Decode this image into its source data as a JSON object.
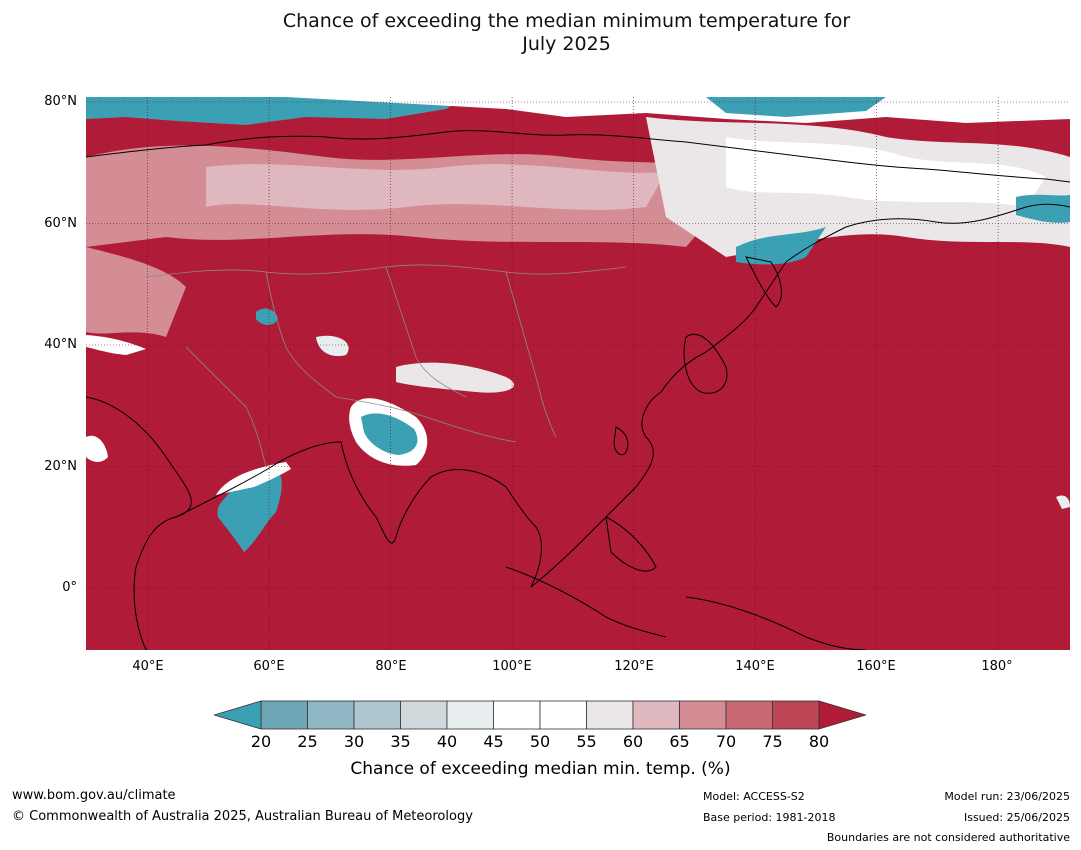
{
  "title": {
    "line1": "Chance of exceeding the median minimum temperature for",
    "line2": "July 2025"
  },
  "map": {
    "lat_labels": [
      "80°N",
      "60°N",
      "40°N",
      "20°N",
      "0°"
    ],
    "lon_labels": [
      "40°E",
      "60°E",
      "80°E",
      "100°E",
      "120°E",
      "140°E",
      "160°E",
      "180°"
    ],
    "extent": {
      "lon_min": 30,
      "lon_max": 192,
      "lat_min": -10,
      "lat_max": 81
    },
    "dominant_color": "#b01c38"
  },
  "colorbar": {
    "ticks": [
      "20",
      "25",
      "30",
      "35",
      "40",
      "45",
      "50",
      "55",
      "60",
      "65",
      "70",
      "75",
      "80"
    ],
    "colors": [
      "#6da7b5",
      "#8eb7c3",
      "#aec6ce",
      "#d2d9dc",
      "#e8eef0",
      "#ffffff",
      "#ffffff",
      "#ebe6e7",
      "#deb8be",
      "#d48c95",
      "#c76873",
      "#be4553"
    ],
    "under_color": "#3ca0b4",
    "over_color": "#b01c38",
    "label": "Chance of exceeding median min. temp. (%)"
  },
  "footer": {
    "website": "www.bom.gov.au/climate",
    "copyright": "© Commonwealth of Australia 2025, Australian Bureau of Meteorology",
    "model": "Model: ACCESS-S2",
    "base_period": "Base period: 1981-2018",
    "model_run": "Model run: 23/06/2025",
    "issued": "Issued: 25/06/2025",
    "disclaimer": "Boundaries are not considered authoritative"
  }
}
